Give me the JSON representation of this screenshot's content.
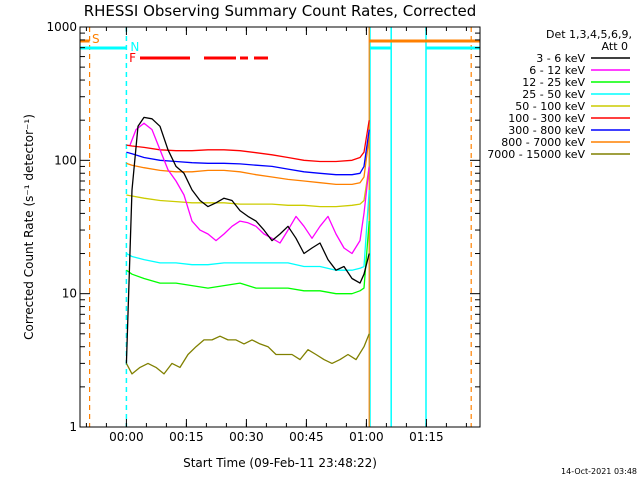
{
  "chart_data": {
    "type": "line",
    "title": "RHESSI Observing Summary Count Rates, Corrected",
    "xlabel": "Start Time (09-Feb-11 23:48:22)",
    "ylabel": "Corrected Count Rate (s⁻¹ detector⁻¹)",
    "y_scale": "log",
    "ylim": [
      1,
      1000
    ],
    "xlim_minutes_from_start": [
      0,
      100
    ],
    "xticks": [
      {
        "label": "00:00",
        "minutes": 11.6
      },
      {
        "label": "00:15",
        "minutes": 26.6
      },
      {
        "label": "00:30",
        "minutes": 41.6
      },
      {
        "label": "00:45",
        "minutes": 56.6
      },
      {
        "label": "01:00",
        "minutes": 71.6
      },
      {
        "label": "01:15",
        "minutes": 86.6
      }
    ],
    "yticks": [
      {
        "label": "1",
        "value": 1
      },
      {
        "label": "10",
        "value": 10
      },
      {
        "label": "100",
        "value": 100
      },
      {
        "label": "1000",
        "value": 1000
      }
    ],
    "legend_title": [
      "Det 1,3,4,5,6,9,",
      "Att 0"
    ],
    "legend_position": "right",
    "series": [
      {
        "name": "3 - 6 keV",
        "color": "#000000",
        "x": [
          11.6,
          13,
          14.5,
          16,
          18,
          20,
          22,
          24,
          26,
          28,
          30,
          32,
          34,
          36,
          38,
          40,
          42,
          44,
          46,
          48,
          50,
          52,
          54,
          56,
          58,
          60,
          62,
          64,
          66,
          68,
          70,
          71,
          72.3
        ],
        "y": [
          3,
          60,
          180,
          210,
          205,
          180,
          120,
          90,
          80,
          60,
          50,
          45,
          48,
          52,
          50,
          42,
          38,
          35,
          30,
          25,
          28,
          32,
          26,
          20,
          22,
          24,
          18,
          15,
          16,
          13,
          12,
          14,
          20
        ]
      },
      {
        "name": "6 - 12 keV",
        "color": "#ff00ff",
        "x": [
          12.5,
          14,
          16,
          18,
          20,
          22,
          24,
          26,
          28,
          30,
          32,
          34,
          36,
          38,
          40,
          42,
          44,
          46,
          48,
          50,
          52,
          54,
          56,
          58,
          60,
          62,
          64,
          66,
          68,
          70,
          71,
          72.3
        ],
        "y": [
          130,
          170,
          190,
          170,
          120,
          85,
          70,
          55,
          35,
          30,
          28,
          25,
          28,
          32,
          35,
          34,
          32,
          28,
          26,
          24,
          30,
          38,
          32,
          26,
          32,
          38,
          28,
          22,
          20,
          25,
          40,
          90
        ]
      },
      {
        "name": "12 - 25 keV",
        "color": "#00ff00",
        "x": [
          11.6,
          13,
          16,
          20,
          24,
          28,
          32,
          36,
          40,
          44,
          48,
          52,
          56,
          60,
          64,
          68,
          70,
          71,
          72.3
        ],
        "y": [
          15,
          14,
          13,
          12,
          12,
          11.5,
          11,
          11.5,
          12,
          11,
          11,
          11,
          10.5,
          10.5,
          10,
          10,
          10.5,
          11,
          35
        ]
      },
      {
        "name": "25 - 50 keV",
        "color": "#00ffff",
        "x": [
          11.6,
          13,
          16,
          20,
          24,
          28,
          32,
          36,
          40,
          44,
          48,
          52,
          56,
          60,
          64,
          68,
          70,
          71,
          72.3
        ],
        "y": [
          20,
          19,
          18,
          17,
          17,
          16.5,
          16.5,
          17,
          17,
          17,
          17,
          17,
          16,
          16,
          15,
          15,
          15.5,
          16,
          60
        ]
      },
      {
        "name": "50 - 100 keV",
        "color": "#cccc00",
        "x": [
          11.6,
          13,
          16,
          20,
          24,
          28,
          32,
          36,
          40,
          44,
          48,
          52,
          56,
          60,
          64,
          68,
          70,
          71,
          72.3
        ],
        "y": [
          55,
          54,
          52,
          50,
          49,
          48,
          48,
          48,
          47,
          47,
          47,
          46,
          46,
          45,
          45,
          46,
          47,
          50,
          90
        ]
      },
      {
        "name": "100 - 300 keV",
        "color": "#ff0000",
        "x": [
          11.6,
          13,
          16,
          20,
          24,
          28,
          32,
          36,
          40,
          44,
          48,
          52,
          56,
          60,
          64,
          68,
          70,
          71,
          72.3
        ],
        "y": [
          130,
          128,
          125,
          120,
          118,
          118,
          120,
          120,
          118,
          114,
          110,
          105,
          100,
          98,
          98,
          100,
          105,
          115,
          200
        ]
      },
      {
        "name": "300 - 800 keV",
        "color": "#0000ff",
        "x": [
          11.6,
          13,
          16,
          20,
          24,
          28,
          32,
          36,
          40,
          44,
          48,
          52,
          56,
          60,
          64,
          68,
          70,
          71,
          72.3
        ],
        "y": [
          115,
          112,
          105,
          100,
          98,
          96,
          95,
          95,
          94,
          92,
          90,
          86,
          82,
          80,
          78,
          78,
          80,
          90,
          170
        ]
      },
      {
        "name": "800 - 7000 keV",
        "color": "#ff8000",
        "x": [
          11.6,
          13,
          16,
          20,
          24,
          28,
          32,
          36,
          40,
          44,
          48,
          52,
          56,
          60,
          64,
          68,
          70,
          71,
          72.3
        ],
        "y": [
          95,
          92,
          88,
          84,
          82,
          82,
          84,
          84,
          82,
          78,
          75,
          72,
          70,
          68,
          66,
          66,
          68,
          75,
          150
        ]
      },
      {
        "name": "7000 - 15000 keV",
        "color": "#808000",
        "x": [
          11.6,
          13,
          15,
          17,
          19,
          21,
          23,
          25,
          27,
          29,
          31,
          33,
          35,
          37,
          39,
          41,
          43,
          45,
          47,
          49,
          51,
          53,
          55,
          57,
          59,
          61,
          63,
          65,
          67,
          69,
          71,
          72.3
        ],
        "y": [
          3,
          2.5,
          2.8,
          3,
          2.8,
          2.5,
          3,
          2.8,
          3.5,
          4,
          4.5,
          4.5,
          4.8,
          4.5,
          4.5,
          4.2,
          4.5,
          4.2,
          4,
          3.5,
          3.5,
          3.5,
          3.2,
          3.8,
          3.5,
          3.2,
          3,
          3.2,
          3.5,
          3.2,
          4,
          5
        ]
      }
    ],
    "annotations": [
      {
        "label": "S",
        "color": "#ff8000",
        "minutes": 3,
        "kind": "saa"
      },
      {
        "label": "N",
        "color": "#00ffff",
        "minutes": 11.6,
        "kind": "night"
      },
      {
        "label": "F",
        "color": "#ff0000",
        "kind": "flare_flags",
        "segments": [
          [
            15,
            27.5
          ],
          [
            31,
            39
          ],
          [
            40,
            42
          ],
          [
            43.5,
            47
          ]
        ]
      }
    ],
    "day_night_bar": {
      "color": "#00ffff",
      "segments": [
        [
          0,
          11.6
        ],
        [
          72.5,
          77.8
        ],
        [
          86.5,
          100
        ]
      ],
      "transitions": [
        11.6,
        72.5,
        77.8,
        86.5
      ]
    },
    "saa_bar": {
      "color": "#ff8000",
      "segments": [
        [
          0,
          2.4
        ],
        [
          72.3,
          100
        ]
      ],
      "transitions": [
        2.4,
        72.3,
        97.8
      ]
    },
    "grid": false
  },
  "footer": {
    "timestamp": "14-Oct-2021 03:48"
  }
}
